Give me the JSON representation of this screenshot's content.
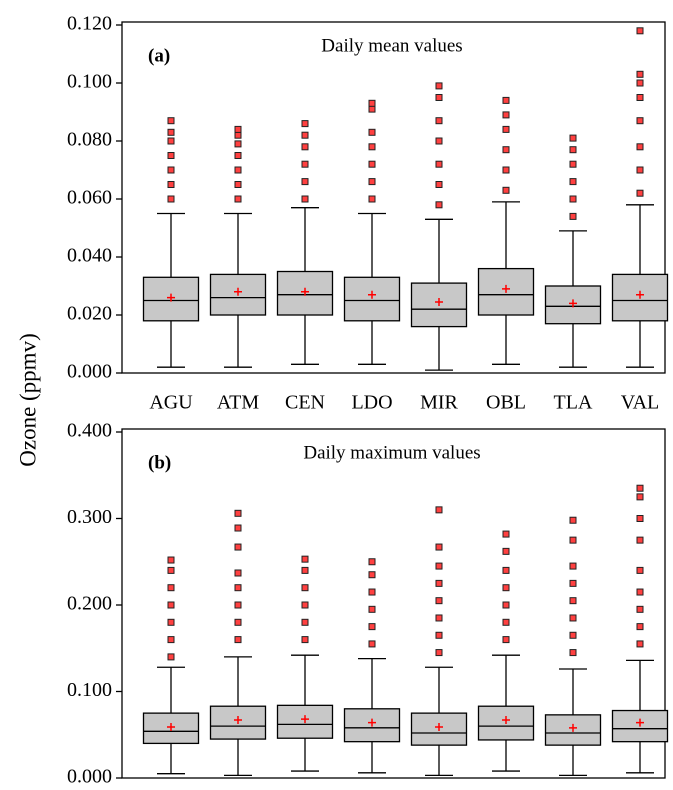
{
  "ylabel": "Ozone (ppmv)",
  "chart_data": [
    {
      "type": "box",
      "panel_label": "(a)",
      "title": "Daily mean values",
      "categories": [
        "AGU",
        "ATM",
        "CEN",
        "LDO",
        "MIR",
        "OBL",
        "TLA",
        "VAL"
      ],
      "box_color": "#c8c8c8",
      "mean_color": "#ff0000",
      "outlier_color": "#ff4040",
      "ylim": [
        0,
        0.12
      ],
      "yticks": [
        {
          "value": 0,
          "label": "0.000"
        },
        {
          "value": 0.02,
          "label": "0.020"
        },
        {
          "value": 0.04,
          "label": "0.040"
        },
        {
          "value": 0.06,
          "label": "0.060"
        },
        {
          "value": 0.08,
          "label": "0.080"
        },
        {
          "value": 0.1,
          "label": "0.100"
        },
        {
          "value": 0.12,
          "label": "0.120"
        }
      ],
      "boxes": [
        {
          "low": 0.002,
          "q1": 0.018,
          "median": 0.025,
          "q3": 0.033,
          "high": 0.055,
          "mean": 0.026,
          "outliers": [
            0.06,
            0.065,
            0.07,
            0.075,
            0.08,
            0.083,
            0.087
          ]
        },
        {
          "low": 0.002,
          "q1": 0.02,
          "median": 0.026,
          "q3": 0.034,
          "high": 0.055,
          "mean": 0.028,
          "outliers": [
            0.06,
            0.065,
            0.07,
            0.075,
            0.079,
            0.082,
            0.084
          ]
        },
        {
          "low": 0.003,
          "q1": 0.02,
          "median": 0.027,
          "q3": 0.035,
          "high": 0.057,
          "mean": 0.028,
          "outliers": [
            0.06,
            0.066,
            0.072,
            0.078,
            0.082,
            0.086
          ]
        },
        {
          "low": 0.003,
          "q1": 0.018,
          "median": 0.025,
          "q3": 0.033,
          "high": 0.055,
          "mean": 0.027,
          "outliers": [
            0.06,
            0.066,
            0.072,
            0.078,
            0.083,
            0.091,
            0.093
          ]
        },
        {
          "low": 0.001,
          "q1": 0.016,
          "median": 0.022,
          "q3": 0.031,
          "high": 0.053,
          "mean": 0.0245,
          "outliers": [
            0.058,
            0.065,
            0.072,
            0.08,
            0.087,
            0.095,
            0.099
          ]
        },
        {
          "low": 0.003,
          "q1": 0.02,
          "median": 0.027,
          "q3": 0.036,
          "high": 0.059,
          "mean": 0.029,
          "outliers": [
            0.063,
            0.07,
            0.077,
            0.084,
            0.089,
            0.094
          ]
        },
        {
          "low": 0.002,
          "q1": 0.017,
          "median": 0.023,
          "q3": 0.03,
          "high": 0.049,
          "mean": 0.024,
          "outliers": [
            0.054,
            0.06,
            0.066,
            0.072,
            0.077,
            0.081
          ]
        },
        {
          "low": 0.002,
          "q1": 0.018,
          "median": 0.025,
          "q3": 0.034,
          "high": 0.058,
          "mean": 0.027,
          "outliers": [
            0.062,
            0.07,
            0.078,
            0.087,
            0.095,
            0.1,
            0.103,
            0.118
          ]
        }
      ]
    },
    {
      "type": "box",
      "panel_label": "(b)",
      "title": "Daily maximum values",
      "box_color": "#c8c8c8",
      "mean_color": "#ff0000",
      "outlier_color": "#ff4040",
      "ylim": [
        0,
        0.4
      ],
      "yticks": [
        {
          "value": 0,
          "label": "0.000"
        },
        {
          "value": 0.1,
          "label": "0.100"
        },
        {
          "value": 0.2,
          "label": "0.200"
        },
        {
          "value": 0.3,
          "label": "0.300"
        },
        {
          "value": 0.4,
          "label": "0.400"
        }
      ],
      "boxes": [
        {
          "low": 0.005,
          "q1": 0.04,
          "median": 0.054,
          "q3": 0.075,
          "high": 0.128,
          "mean": 0.059,
          "outliers": [
            0.14,
            0.16,
            0.18,
            0.2,
            0.22,
            0.24,
            0.252
          ]
        },
        {
          "low": 0.003,
          "q1": 0.045,
          "median": 0.06,
          "q3": 0.083,
          "high": 0.14,
          "mean": 0.067,
          "outliers": [
            0.16,
            0.18,
            0.2,
            0.22,
            0.237,
            0.267,
            0.289,
            0.306
          ]
        },
        {
          "low": 0.008,
          "q1": 0.046,
          "median": 0.062,
          "q3": 0.084,
          "high": 0.142,
          "mean": 0.068,
          "outliers": [
            0.16,
            0.18,
            0.2,
            0.22,
            0.24,
            0.253
          ]
        },
        {
          "low": 0.006,
          "q1": 0.042,
          "median": 0.058,
          "q3": 0.08,
          "high": 0.138,
          "mean": 0.064,
          "outliers": [
            0.155,
            0.175,
            0.195,
            0.215,
            0.235,
            0.25
          ]
        },
        {
          "low": 0.003,
          "q1": 0.038,
          "median": 0.052,
          "q3": 0.075,
          "high": 0.128,
          "mean": 0.059,
          "outliers": [
            0.145,
            0.165,
            0.185,
            0.205,
            0.225,
            0.245,
            0.267,
            0.31
          ]
        },
        {
          "low": 0.008,
          "q1": 0.044,
          "median": 0.06,
          "q3": 0.083,
          "high": 0.142,
          "mean": 0.067,
          "outliers": [
            0.16,
            0.18,
            0.2,
            0.22,
            0.24,
            0.262,
            0.282
          ]
        },
        {
          "low": 0.003,
          "q1": 0.038,
          "median": 0.052,
          "q3": 0.073,
          "high": 0.126,
          "mean": 0.058,
          "outliers": [
            0.145,
            0.165,
            0.185,
            0.205,
            0.225,
            0.245,
            0.275,
            0.298
          ]
        },
        {
          "low": 0.006,
          "q1": 0.042,
          "median": 0.057,
          "q3": 0.078,
          "high": 0.136,
          "mean": 0.064,
          "outliers": [
            0.155,
            0.175,
            0.195,
            0.215,
            0.24,
            0.275,
            0.3,
            0.325,
            0.335
          ]
        }
      ]
    }
  ]
}
